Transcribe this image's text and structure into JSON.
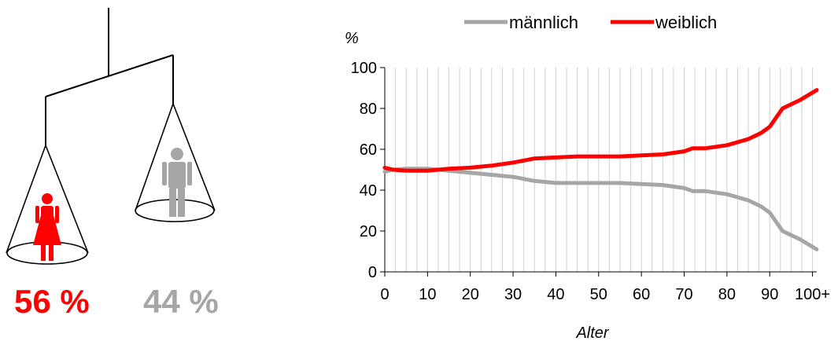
{
  "infographic": {
    "female_percent": "56 %",
    "male_percent": "44 %",
    "female_color": "#ff0000",
    "male_color": "#a6a6a6",
    "female_icon": "woman-figure-icon",
    "male_icon": "man-figure-icon"
  },
  "chart_data": {
    "type": "line",
    "ylabel": "%",
    "xlabel": "Alter",
    "xlim": [
      0,
      101
    ],
    "ylim": [
      0,
      100
    ],
    "x_ticks": [
      0,
      10,
      20,
      30,
      40,
      50,
      60,
      70,
      80,
      90,
      100
    ],
    "x_tick_labels": [
      "0",
      "10",
      "20",
      "30",
      "40",
      "50",
      "60",
      "70",
      "80",
      "90",
      "100+"
    ],
    "y_ticks": [
      0,
      20,
      40,
      60,
      80,
      100
    ],
    "y_tick_labels": [
      "0",
      "20",
      "40",
      "60",
      "80",
      "100"
    ],
    "grid": {
      "vertical": true,
      "horizontal": false
    },
    "legend_position": "top",
    "series": [
      {
        "name": "männlich",
        "color": "#a6a6a6",
        "points": [
          [
            0,
            49
          ],
          [
            2,
            50
          ],
          [
            5,
            50.5
          ],
          [
            10,
            50.5
          ],
          [
            15,
            49.5
          ],
          [
            20,
            48.5
          ],
          [
            25,
            47.5
          ],
          [
            30,
            46.5
          ],
          [
            35,
            44.5
          ],
          [
            40,
            43.5
          ],
          [
            45,
            43.5
          ],
          [
            50,
            43.5
          ],
          [
            55,
            43.5
          ],
          [
            60,
            43
          ],
          [
            65,
            42.5
          ],
          [
            70,
            41
          ],
          [
            72,
            39.5
          ],
          [
            75,
            39.5
          ],
          [
            80,
            38
          ],
          [
            85,
            35
          ],
          [
            88,
            32
          ],
          [
            90,
            29
          ],
          [
            93,
            20
          ],
          [
            95,
            18
          ],
          [
            97,
            16
          ],
          [
            99,
            13.5
          ],
          [
            101,
            11
          ]
        ]
      },
      {
        "name": "weiblich",
        "color": "#ff0000",
        "points": [
          [
            0,
            51
          ],
          [
            2,
            50
          ],
          [
            5,
            49.5
          ],
          [
            10,
            49.5
          ],
          [
            15,
            50.5
          ],
          [
            20,
            51
          ],
          [
            25,
            52
          ],
          [
            30,
            53.5
          ],
          [
            35,
            55.5
          ],
          [
            40,
            56
          ],
          [
            45,
            56.5
          ],
          [
            50,
            56.5
          ],
          [
            55,
            56.5
          ],
          [
            60,
            57
          ],
          [
            65,
            57.5
          ],
          [
            70,
            59
          ],
          [
            72,
            60.5
          ],
          [
            75,
            60.5
          ],
          [
            80,
            62
          ],
          [
            85,
            65
          ],
          [
            88,
            68
          ],
          [
            90,
            71
          ],
          [
            93,
            80
          ],
          [
            95,
            82
          ],
          [
            97,
            84
          ],
          [
            99,
            86.5
          ],
          [
            101,
            89
          ]
        ]
      }
    ]
  }
}
